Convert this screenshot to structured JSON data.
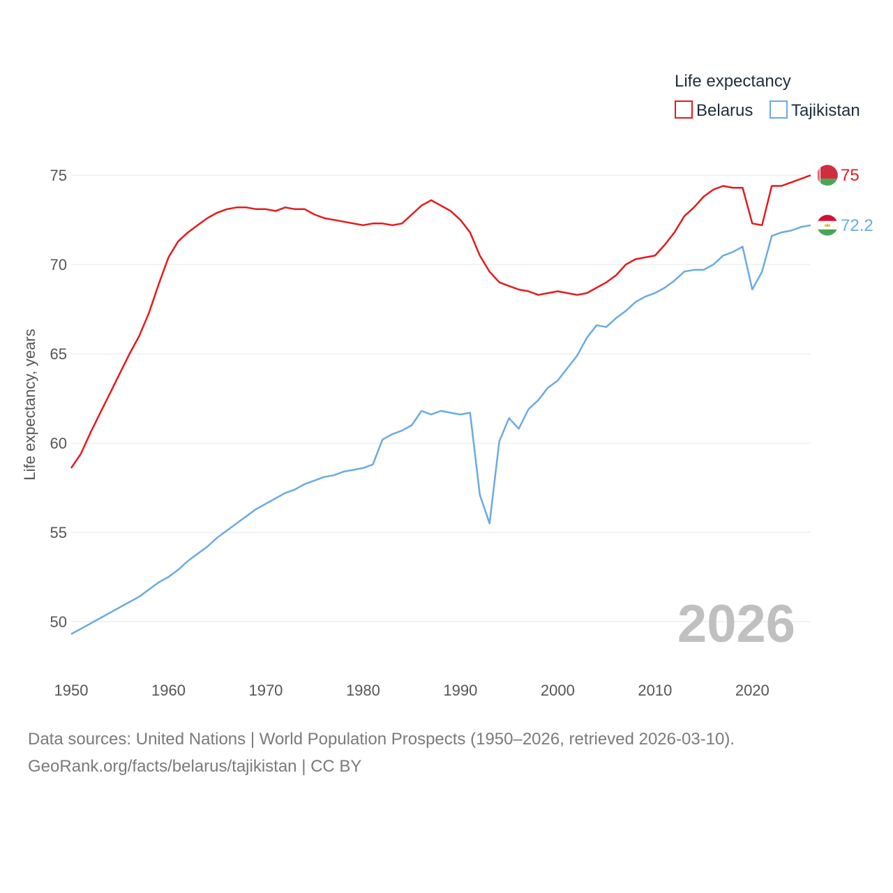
{
  "chart_data": {
    "type": "line",
    "title": "",
    "xlabel": "",
    "ylabel": "Life expectancy, years",
    "xlim": [
      1950,
      2026
    ],
    "ylim": [
      47.5,
      77
    ],
    "x_ticks": [
      1950,
      1960,
      1970,
      1980,
      1990,
      2000,
      2010,
      2020
    ],
    "y_ticks": [
      50,
      55,
      60,
      65,
      70,
      75
    ],
    "grid": true,
    "legend_title": "Life expectancy",
    "legend_position": "top-right",
    "year_label": "2026",
    "x": [
      1950,
      1951,
      1952,
      1953,
      1954,
      1955,
      1956,
      1957,
      1958,
      1959,
      1960,
      1961,
      1962,
      1963,
      1964,
      1965,
      1966,
      1967,
      1968,
      1969,
      1970,
      1971,
      1972,
      1973,
      1974,
      1975,
      1976,
      1977,
      1978,
      1979,
      1980,
      1981,
      1982,
      1983,
      1984,
      1985,
      1986,
      1987,
      1988,
      1989,
      1990,
      1991,
      1992,
      1993,
      1994,
      1995,
      1996,
      1997,
      1998,
      1999,
      2000,
      2001,
      2002,
      2003,
      2004,
      2005,
      2006,
      2007,
      2008,
      2009,
      2010,
      2011,
      2012,
      2013,
      2014,
      2015,
      2016,
      2017,
      2018,
      2019,
      2020,
      2021,
      2022,
      2023,
      2024,
      2025,
      2026
    ],
    "series": [
      {
        "name": "Belarus",
        "color": "#e31a1c",
        "end_label": "75",
        "flag": "belarus-flag-icon",
        "values": [
          58.6,
          59.4,
          60.6,
          61.7,
          62.8,
          63.9,
          65.0,
          66.0,
          67.3,
          68.9,
          70.4,
          71.3,
          71.8,
          72.2,
          72.6,
          72.9,
          73.1,
          73.2,
          73.2,
          73.1,
          73.1,
          73.0,
          73.2,
          73.1,
          73.1,
          72.8,
          72.6,
          72.5,
          72.4,
          72.3,
          72.2,
          72.3,
          72.3,
          72.2,
          72.3,
          72.8,
          73.3,
          73.6,
          73.3,
          73.0,
          72.5,
          71.8,
          70.5,
          69.6,
          69.0,
          68.8,
          68.6,
          68.5,
          68.3,
          68.4,
          68.5,
          68.4,
          68.3,
          68.4,
          68.7,
          69.0,
          69.4,
          70.0,
          70.3,
          70.4,
          70.5,
          71.1,
          71.8,
          72.7,
          73.2,
          73.8,
          74.2,
          74.4,
          74.3,
          74.3,
          72.3,
          72.2,
          74.4,
          74.4,
          74.6,
          74.8,
          75.0
        ]
      },
      {
        "name": "Tajikistan",
        "color": "#6aaae4",
        "end_label": "72.2",
        "flag": "tajikistan-flag-icon",
        "values": [
          49.3,
          49.6,
          49.9,
          50.2,
          50.5,
          50.8,
          51.1,
          51.4,
          51.8,
          52.2,
          52.5,
          52.9,
          53.4,
          53.8,
          54.2,
          54.7,
          55.1,
          55.5,
          55.9,
          56.3,
          56.6,
          56.9,
          57.2,
          57.4,
          57.7,
          57.9,
          58.1,
          58.2,
          58.4,
          58.5,
          58.6,
          58.8,
          60.2,
          60.5,
          60.7,
          61.0,
          61.8,
          61.6,
          61.8,
          61.7,
          61.6,
          61.7,
          57.1,
          55.5,
          60.1,
          61.4,
          60.8,
          61.9,
          62.4,
          63.1,
          63.5,
          64.2,
          64.9,
          65.9,
          66.6,
          66.5,
          67.0,
          67.4,
          67.9,
          68.2,
          68.4,
          68.7,
          69.1,
          69.6,
          69.7,
          69.7,
          70.0,
          70.5,
          70.7,
          71.0,
          68.6,
          69.6,
          71.6,
          71.8,
          71.9,
          72.1,
          72.2
        ]
      }
    ]
  },
  "footer": {
    "sources": "Data sources: United Nations | World Population Prospects (1950–2026, retrieved 2026-03-10).",
    "credit": "GeoRank.org/facts/belarus/tajikistan | CC BY"
  }
}
